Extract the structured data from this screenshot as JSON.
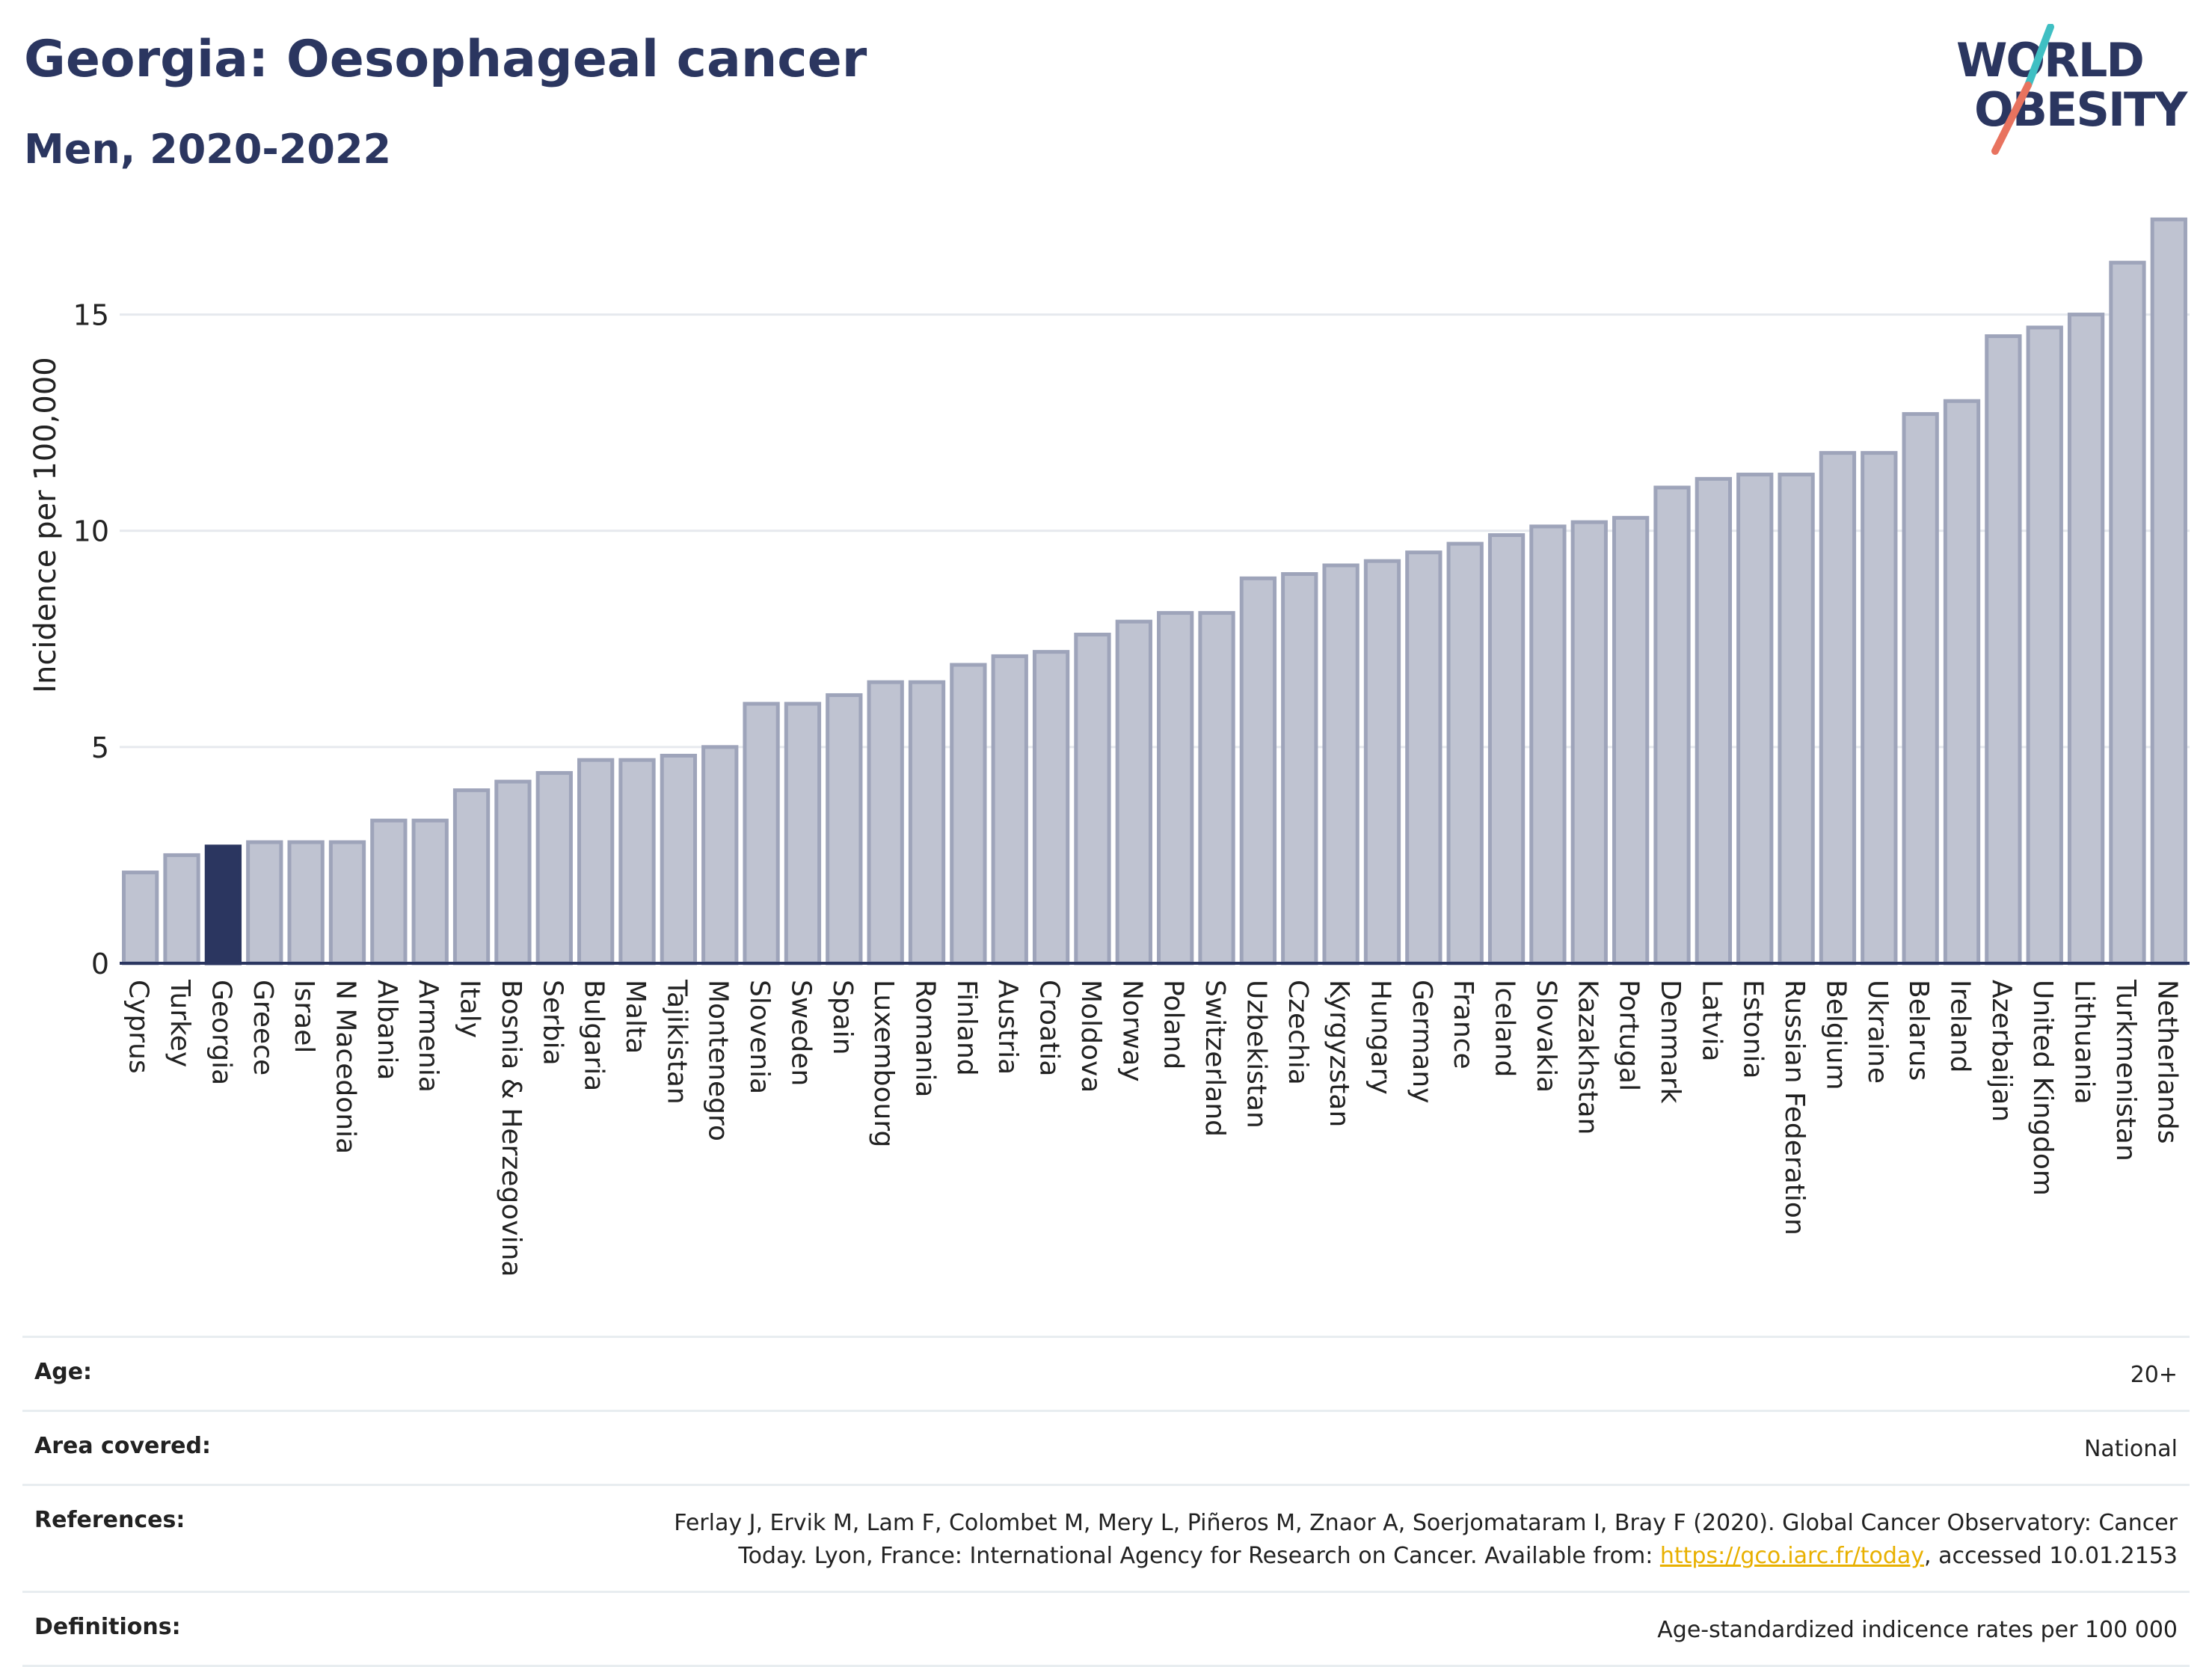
{
  "header": {
    "title": "Georgia: Oesophageal cancer",
    "subtitle": "Men, 2020-2022"
  },
  "logo": {
    "line1": "WORLD",
    "line2": "OBESITY",
    "colors": {
      "text": "#2b3660",
      "slash_teal": "#3fbfc3",
      "slash_coral": "#e8735f"
    }
  },
  "chart_data": {
    "type": "bar",
    "title": "Georgia: Oesophageal cancer",
    "subtitle": "Men, 2020-2022",
    "xlabel": "",
    "ylabel": "Incidence per 100,000",
    "ylim": [
      0,
      17.5
    ],
    "yticks": [
      0,
      5,
      10,
      15
    ],
    "grid": true,
    "highlight": "Georgia",
    "colors": {
      "bar": "#bfc3d1",
      "bar_edge": "#9ea4ba",
      "highlight": "#2b3660",
      "grid": "#e6e9ee",
      "axis": "#2b3660"
    },
    "categories": [
      "Cyprus",
      "Turkey",
      "Georgia",
      "Greece",
      "Israel",
      "N Macedonia",
      "Albania",
      "Armenia",
      "Italy",
      "Bosnia & Herzegovina",
      "Serbia",
      "Bulgaria",
      "Malta",
      "Tajikistan",
      "Montenegro",
      "Slovenia",
      "Sweden",
      "Spain",
      "Luxembourg",
      "Romania",
      "Finland",
      "Austria",
      "Croatia",
      "Moldova",
      "Norway",
      "Poland",
      "Switzerland",
      "Uzbekistan",
      "Czechia",
      "Kyrgyzstan",
      "Hungary",
      "Germany",
      "France",
      "Iceland",
      "Slovakia",
      "Kazakhstan",
      "Portugal",
      "Denmark",
      "Latvia",
      "Estonia",
      "Russian Federation",
      "Belgium",
      "Ukraine",
      "Belarus",
      "Ireland",
      "Azerbaijan",
      "United Kingdom",
      "Lithuania",
      "Turkmenistan",
      "Netherlands"
    ],
    "values": [
      2.1,
      2.5,
      2.7,
      2.8,
      2.8,
      2.8,
      3.3,
      3.3,
      4.0,
      4.2,
      4.4,
      4.7,
      4.7,
      4.8,
      5.0,
      6.0,
      6.0,
      6.2,
      6.5,
      6.5,
      6.9,
      7.1,
      7.2,
      7.6,
      7.9,
      8.1,
      8.1,
      8.9,
      9.0,
      9.2,
      9.3,
      9.5,
      9.7,
      9.9,
      10.1,
      10.2,
      10.3,
      11.0,
      11.2,
      11.3,
      11.3,
      11.8,
      11.8,
      12.7,
      13.0,
      14.5,
      14.7,
      15.0,
      16.2,
      17.2
    ]
  },
  "meta": {
    "age_label": "Age:",
    "age_value": "20+",
    "area_label": "Area covered:",
    "area_value": "National",
    "references_label": "References:",
    "references_line1": "Ferlay J, Ervik M, Lam F, Colombet M, Mery L, Piñeros M, Znaor A, Soerjomataram I, Bray F (2020). Global Cancer Observatory: Cancer",
    "references_line2_before": "Today. Lyon, France: International Agency for Research on Cancer. Available from: ",
    "references_link": "https://gco.iarc.fr/today",
    "references_line2_after": ", accessed 10.01.2153",
    "definitions_label": "Definitions:",
    "definitions_value": "Age-standardized indicence rates per 100 000"
  }
}
